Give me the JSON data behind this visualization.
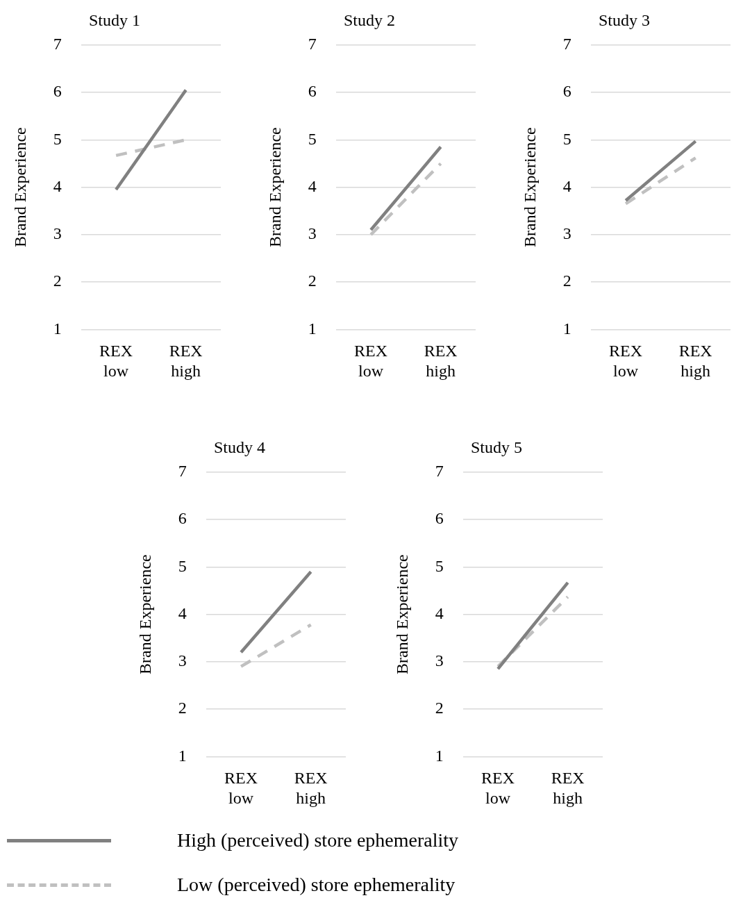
{
  "chart_data": [
    {
      "type": "line",
      "title": "Study 1",
      "ylabel": "Brand Experience",
      "categories": [
        "REX low",
        "REX high"
      ],
      "ylim": [
        1,
        7
      ],
      "yticks": [
        1,
        2,
        3,
        4,
        5,
        6,
        7
      ],
      "grid": "y",
      "legend": "bottom",
      "marker": "none",
      "series": [
        {
          "name": "High (perceived) store ephemerality",
          "color": "#808080",
          "line_style": "solid",
          "values": [
            3.95,
            6.05
          ]
        },
        {
          "name": "Low (perceived) store ephemerality",
          "color": "#c0c0c0",
          "line_style": "dashed",
          "values": [
            4.67,
            5.0
          ]
        }
      ]
    },
    {
      "type": "line",
      "title": "Study 2",
      "ylabel": "Brand Experience",
      "categories": [
        "REX low",
        "REX high"
      ],
      "ylim": [
        1,
        7
      ],
      "yticks": [
        1,
        2,
        3,
        4,
        5,
        6,
        7
      ],
      "grid": "y",
      "marker": "none",
      "series": [
        {
          "color": "#808080",
          "line_style": "solid",
          "values": [
            3.1,
            4.85
          ]
        },
        {
          "color": "#c0c0c0",
          "line_style": "dashed",
          "values": [
            3.0,
            4.5
          ]
        }
      ]
    },
    {
      "type": "line",
      "title": "Study 3",
      "ylabel": "Brand Experience",
      "categories": [
        "REX low",
        "REX high"
      ],
      "ylim": [
        1,
        7
      ],
      "yticks": [
        1,
        2,
        3,
        4,
        5,
        6,
        7
      ],
      "grid": "y",
      "marker": "none",
      "series": [
        {
          "color": "#808080",
          "line_style": "solid",
          "values": [
            3.72,
            4.97
          ]
        },
        {
          "color": "#c0c0c0",
          "line_style": "dashed",
          "values": [
            3.65,
            4.62
          ]
        }
      ]
    },
    {
      "type": "line",
      "title": "Study 4",
      "ylabel": "Brand Experience",
      "categories": [
        "REX low",
        "REX high"
      ],
      "ylim": [
        1,
        7
      ],
      "yticks": [
        1,
        2,
        3,
        4,
        5,
        6,
        7
      ],
      "grid": "y",
      "marker": "none",
      "series": [
        {
          "color": "#808080",
          "line_style": "solid",
          "values": [
            3.2,
            4.9
          ]
        },
        {
          "color": "#c0c0c0",
          "line_style": "dashed",
          "values": [
            2.9,
            3.78
          ]
        }
      ]
    },
    {
      "type": "line",
      "title": "Study 5",
      "ylabel": "Brand Experience",
      "categories": [
        "REX low",
        "REX high"
      ],
      "ylim": [
        1,
        7
      ],
      "yticks": [
        1,
        2,
        3,
        4,
        5,
        6,
        7
      ],
      "grid": "y",
      "marker": "none",
      "series": [
        {
          "color": "#808080",
          "line_style": "solid",
          "values": [
            2.85,
            4.67
          ]
        },
        {
          "color": "#c0c0c0",
          "line_style": "dashed",
          "values": [
            2.9,
            4.37
          ]
        }
      ]
    }
  ]
}
